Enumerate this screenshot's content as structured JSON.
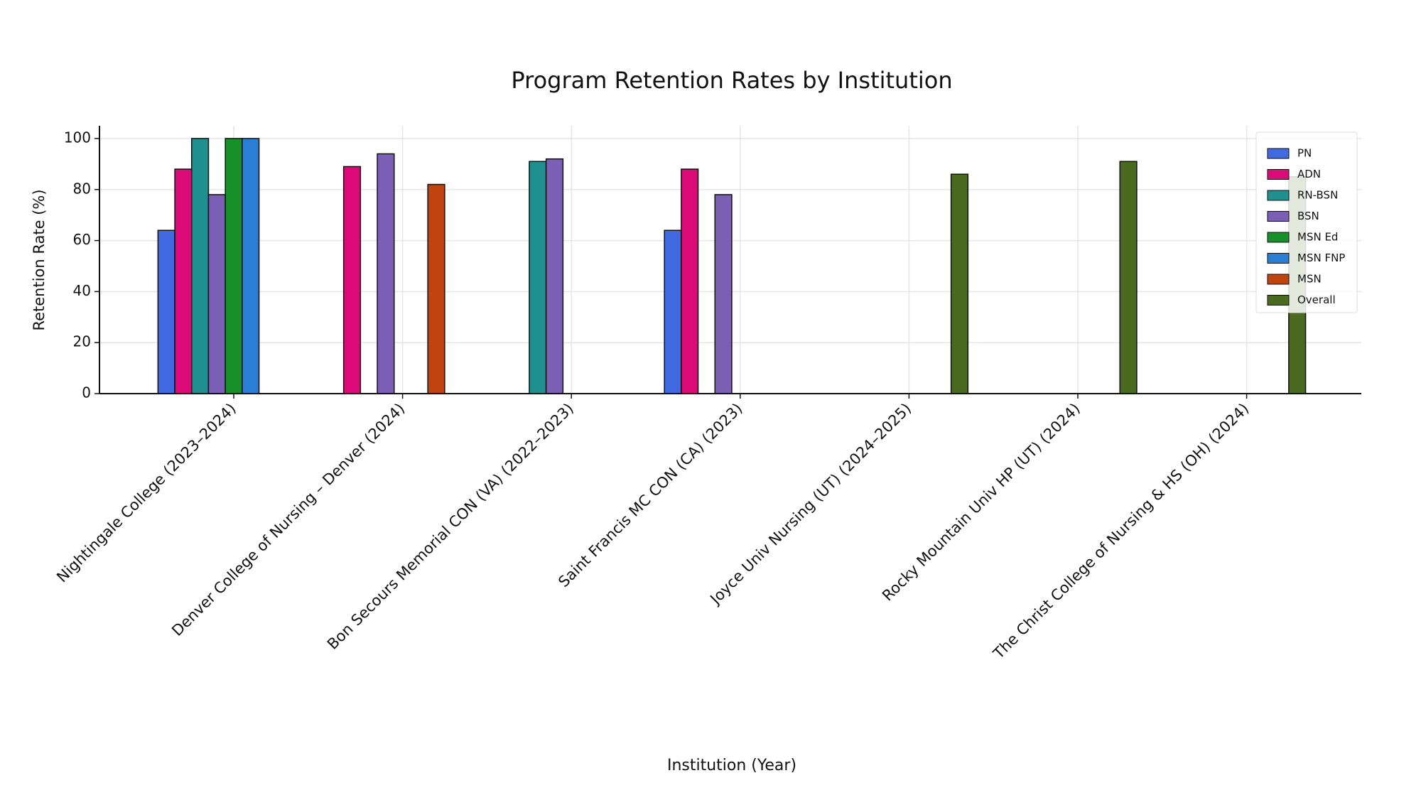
{
  "chart_data": {
    "type": "bar",
    "title": "Program Retention Rates by Institution",
    "x_label": "Institution (Year)",
    "y_label": "Retention Rate (%)",
    "categories": [
      "Nightingale College (2023–2024)",
      "Denver College of Nursing – Denver (2024)",
      "Bon Secours Memorial CON (VA) (2022–2023)",
      "Saint Francis MC CON (CA) (2023)",
      "Joyce Univ Nursing (UT) (2024–2025)",
      "Rocky Mountain Univ HP (UT) (2024)",
      "The Christ College of Nursing & HS (OH) (2024)"
    ],
    "series": [
      {
        "name": "PN",
        "color": "#4169e1",
        "values": [
          64,
          null,
          null,
          64,
          null,
          null,
          null
        ]
      },
      {
        "name": "ADN",
        "color": "#dc0a78",
        "values": [
          88,
          89,
          null,
          88,
          null,
          null,
          null
        ]
      },
      {
        "name": "RN-BSN",
        "color": "#1f8f8f",
        "values": [
          100,
          null,
          91,
          null,
          null,
          null,
          null
        ]
      },
      {
        "name": "BSN",
        "color": "#7b5fb5",
        "values": [
          78,
          94,
          92,
          78,
          null,
          null,
          null
        ]
      },
      {
        "name": "MSN Ed",
        "color": "#17902a",
        "values": [
          100,
          null,
          null,
          null,
          null,
          null,
          null
        ]
      },
      {
        "name": "MSN FNP",
        "color": "#2a7fd4",
        "values": [
          100,
          null,
          null,
          null,
          null,
          null,
          null
        ]
      },
      {
        "name": "MSN",
        "color": "#c0440f",
        "values": [
          null,
          82,
          null,
          null,
          null,
          null,
          null
        ]
      },
      {
        "name": "Overall",
        "color": "#4a6b1f",
        "values": [
          null,
          null,
          null,
          null,
          86,
          91,
          85
        ]
      }
    ],
    "ylim": [
      0,
      105
    ],
    "yticks": [
      0,
      20,
      40,
      60,
      80,
      100
    ],
    "grid": true,
    "legend": "upper right"
  }
}
